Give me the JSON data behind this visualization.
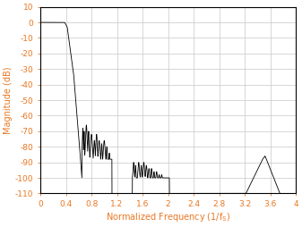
{
  "ylabel": "Magnitude (dB)",
  "xlim": [
    0,
    4
  ],
  "ylim": [
    -110,
    10
  ],
  "xticks": [
    0,
    0.4,
    0.8,
    1.2,
    1.6,
    2.0,
    2.4,
    2.8,
    3.2,
    3.6,
    4.0
  ],
  "xtick_labels": [
    "0",
    "0.4",
    "0.8",
    "1.2",
    "1.6",
    "2",
    "2.4",
    "2.8",
    "3.2",
    "3.6",
    "4"
  ],
  "yticks": [
    10,
    0,
    -10,
    -20,
    -30,
    -40,
    -50,
    -60,
    -70,
    -80,
    -90,
    -100,
    -110
  ],
  "ytick_labels": [
    "10",
    "0",
    "-10",
    "-20",
    "-30",
    "-40",
    "-50",
    "-60",
    "-70",
    "-80",
    "-90",
    "-100",
    "-110"
  ],
  "line_color": "#000000",
  "grid_color": "#c8c8c8",
  "axis_label_color": "#e87722",
  "tick_label_color": "#e87722",
  "background_color": "#ffffff",
  "figsize": [
    3.37,
    2.54
  ],
  "dpi": 100
}
